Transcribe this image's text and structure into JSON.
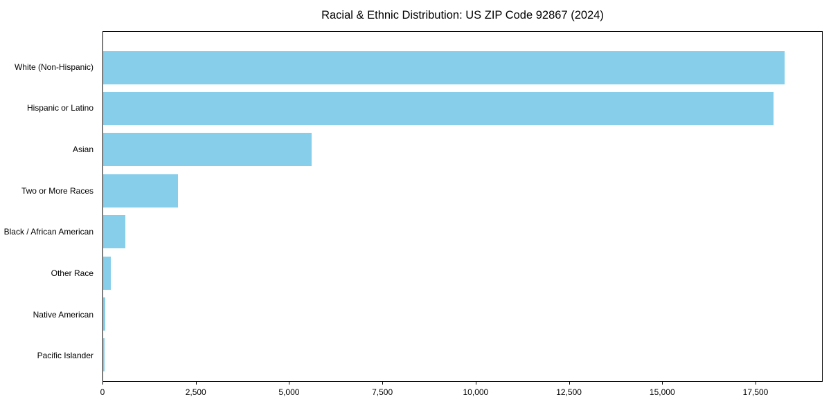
{
  "chart_data": {
    "type": "bar",
    "orientation": "horizontal",
    "title": "Racial & Ethnic Distribution: US ZIP Code 92867 (2024)",
    "categories": [
      "White (Non-Hispanic)",
      "Hispanic or Latino",
      "Asian",
      "Two or More Races",
      "Black / African American",
      "Other Race",
      "Native American",
      "Pacific Islander"
    ],
    "values": [
      18300,
      18000,
      5600,
      2000,
      600,
      200,
      60,
      40
    ],
    "bar_color": "#87CEEB",
    "xlabel": "",
    "ylabel": "",
    "xlim": [
      0,
      19300
    ],
    "x_ticks": [
      0,
      2500,
      5000,
      7500,
      10000,
      12500,
      15000,
      17500
    ],
    "x_tick_labels": [
      "0",
      "2,500",
      "5,000",
      "7,500",
      "10,000",
      "12,500",
      "15,000",
      "17,500"
    ],
    "grid": false,
    "legend": "none",
    "background_color": "#ffffff",
    "spine_color": "#000000"
  }
}
